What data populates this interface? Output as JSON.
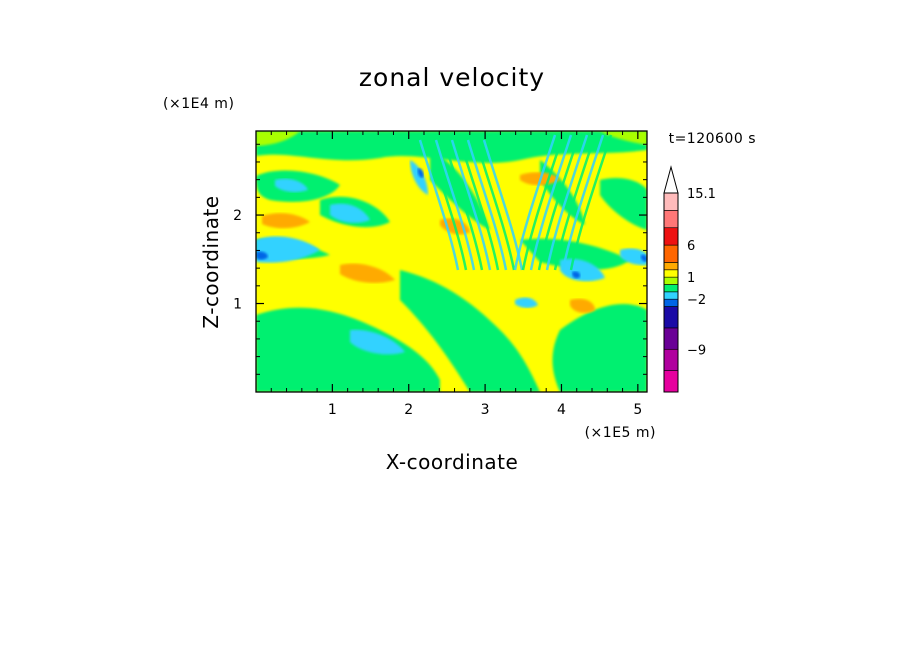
{
  "chart_data": {
    "type": "heatmap",
    "title": "zonal velocity",
    "xlabel": "X-coordinate",
    "ylabel": "Z-coordinate",
    "x_unit": "(×1E5 m)",
    "y_unit": "(×1E4 m)",
    "time_label": "t=120600 s",
    "xlim": [
      0,
      5.12
    ],
    "ylim": [
      0,
      2.95
    ],
    "x_ticks": [
      1,
      2,
      3,
      4,
      5
    ],
    "x_tick_labels": [
      "1",
      "2",
      "3",
      "4",
      "5"
    ],
    "y_ticks": [
      1,
      2
    ],
    "y_tick_labels": [
      "1",
      "2"
    ],
    "x_minor_step": 0.2,
    "y_minor_step": 0.2,
    "colorbar": {
      "levels": [
        -15.1,
        -12,
        -9,
        -6,
        -4,
        -2,
        -1,
        0,
        1,
        2,
        4,
        6,
        9,
        12,
        15.1
      ],
      "colors": [
        "#e6009e",
        "#b0009e",
        "#6a0096",
        "#1a0aa6",
        "#0066e6",
        "#30d2ff",
        "#00f070",
        "#aaff00",
        "#ffff00",
        "#ffaa00",
        "#ff6600",
        "#ee1111",
        "#ff7777",
        "#ffbbbb"
      ],
      "tick_labels": [
        {
          "value": 15.1,
          "label": "15.1"
        },
        {
          "value": 6,
          "label": "6"
        },
        {
          "value": 1,
          "label": "1"
        },
        {
          "value": -2,
          "label": "-2"
        },
        {
          "value": -9,
          "label": "-9"
        }
      ],
      "extend_max": true,
      "extend_max_color": "#ffffff"
    },
    "grid": false
  }
}
